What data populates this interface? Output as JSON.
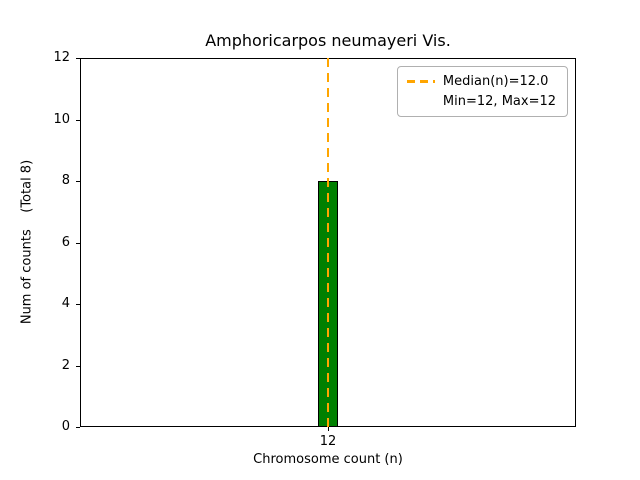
{
  "chart_data": {
    "type": "bar",
    "title": "Amphoricarpos neumayeri Vis.",
    "xlabel": "Chromosome count (n)",
    "ylabel": "Num of counts    (Total 8)",
    "categories": [
      "12"
    ],
    "values": [
      8
    ],
    "ylim": [
      0,
      12
    ],
    "yticks": [
      0,
      2,
      4,
      6,
      8,
      10,
      12
    ],
    "grid": false,
    "bar_color": "#008000",
    "bar_edge_color": "#000000",
    "median_line": {
      "value": 12.0,
      "color": "#FFA500",
      "style": "dashed"
    },
    "legend": {
      "position": "top-right",
      "entries": [
        {
          "label": "Median(n)=12.0",
          "swatch": "dashed-orange-line"
        },
        {
          "label": "Min=12, Max=12",
          "swatch": "none"
        }
      ]
    }
  }
}
